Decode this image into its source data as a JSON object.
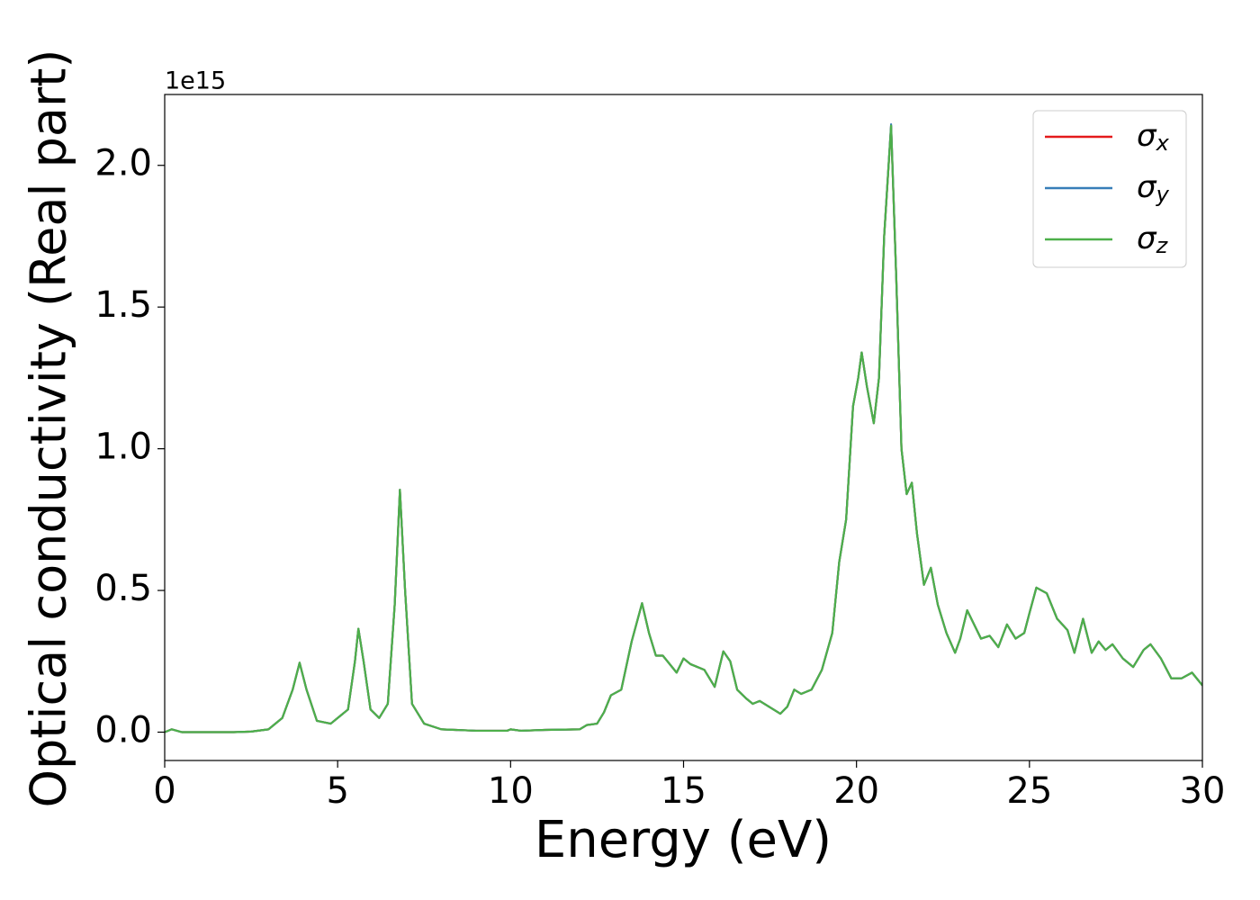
{
  "chart_data": {
    "type": "line",
    "xlabel": "Energy (eV)",
    "ylabel": "Optical conductivity (Real part)",
    "y_offset_text": "1e15",
    "xlim": [
      0,
      30
    ],
    "xticks": [
      0,
      5,
      10,
      15,
      20,
      25,
      30
    ],
    "ylim": [
      -0.1,
      2.25
    ],
    "yticks": [
      {
        "value": 0,
        "label": "0.0"
      },
      0.5,
      {
        "value": 1,
        "label": "1.0"
      },
      1.5,
      {
        "value": 2,
        "label": "2.0"
      }
    ],
    "grid": false,
    "legend": "upper right",
    "x": [
      0,
      0.2,
      0.5,
      1,
      2,
      2.5,
      3,
      3.4,
      3.7,
      3.9,
      4.1,
      4.4,
      4.8,
      5.1,
      5.3,
      5.5,
      5.6,
      5.75,
      5.95,
      6.2,
      6.45,
      6.65,
      6.8,
      6.95,
      7.15,
      7.5,
      8,
      9,
      9.9,
      10,
      10.3,
      11,
      12,
      12.2,
      12.5,
      12.7,
      12.9,
      13.2,
      13.5,
      13.8,
      14.0,
      14.2,
      14.4,
      14.8,
      15.0,
      15.2,
      15.6,
      15.9,
      16.15,
      16.35,
      16.55,
      16.8,
      17.0,
      17.2,
      17.8,
      18.0,
      18.2,
      18.4,
      18.7,
      19.0,
      19.3,
      19.5,
      19.7,
      19.9,
      20.05,
      20.15,
      20.3,
      20.5,
      20.65,
      20.8,
      21.0,
      21.15,
      21.3,
      21.45,
      21.6,
      21.75,
      21.95,
      22.15,
      22.35,
      22.6,
      22.85,
      23.0,
      23.2,
      23.4,
      23.6,
      23.85,
      24.1,
      24.35,
      24.6,
      24.85,
      25.0,
      25.2,
      25.5,
      25.8,
      26.1,
      26.3,
      26.55,
      26.8,
      27.0,
      27.2,
      27.4,
      27.7,
      28.0,
      28.3,
      28.5,
      28.8,
      29.1,
      29.4,
      29.7,
      30.0
    ],
    "series": [
      {
        "name": "σx",
        "color": "#e41a1c",
        "values": [
          0,
          0.01,
          0,
          0,
          0,
          0.002,
          0.01,
          0.05,
          0.15,
          0.245,
          0.15,
          0.04,
          0.03,
          0.06,
          0.08,
          0.25,
          0.365,
          0.25,
          0.08,
          0.05,
          0.1,
          0.45,
          0.855,
          0.5,
          0.1,
          0.03,
          0.01,
          0.005,
          0.005,
          0.01,
          0.005,
          0.008,
          0.01,
          0.025,
          0.03,
          0.07,
          0.13,
          0.15,
          0.32,
          0.455,
          0.35,
          0.27,
          0.27,
          0.21,
          0.26,
          0.24,
          0.22,
          0.16,
          0.285,
          0.25,
          0.15,
          0.12,
          0.1,
          0.11,
          0.065,
          0.09,
          0.15,
          0.135,
          0.15,
          0.22,
          0.35,
          0.6,
          0.75,
          1.15,
          1.25,
          1.34,
          1.22,
          1.09,
          1.25,
          1.75,
          2.14,
          1.6,
          1.0,
          0.84,
          0.88,
          0.7,
          0.52,
          0.58,
          0.45,
          0.35,
          0.28,
          0.33,
          0.43,
          0.38,
          0.33,
          0.34,
          0.3,
          0.38,
          0.33,
          0.35,
          0.42,
          0.51,
          0.49,
          0.4,
          0.36,
          0.28,
          0.4,
          0.28,
          0.32,
          0.29,
          0.31,
          0.26,
          0.23,
          0.29,
          0.31,
          0.26,
          0.19,
          0.19,
          0.21,
          0.165
        ]
      },
      {
        "name": "σy",
        "color": "#377eb8",
        "values": [
          0,
          0.01,
          0,
          0,
          0,
          0.002,
          0.01,
          0.05,
          0.15,
          0.245,
          0.15,
          0.04,
          0.03,
          0.06,
          0.08,
          0.25,
          0.365,
          0.25,
          0.08,
          0.05,
          0.1,
          0.45,
          0.855,
          0.5,
          0.1,
          0.03,
          0.01,
          0.005,
          0.005,
          0.01,
          0.005,
          0.008,
          0.01,
          0.025,
          0.03,
          0.07,
          0.13,
          0.15,
          0.32,
          0.455,
          0.35,
          0.27,
          0.27,
          0.21,
          0.26,
          0.24,
          0.22,
          0.16,
          0.285,
          0.25,
          0.15,
          0.12,
          0.1,
          0.11,
          0.065,
          0.09,
          0.15,
          0.135,
          0.15,
          0.22,
          0.35,
          0.6,
          0.75,
          1.15,
          1.25,
          1.34,
          1.22,
          1.09,
          1.25,
          1.75,
          2.145,
          1.6,
          1.0,
          0.84,
          0.88,
          0.7,
          0.52,
          0.58,
          0.45,
          0.35,
          0.28,
          0.33,
          0.43,
          0.38,
          0.33,
          0.34,
          0.3,
          0.38,
          0.33,
          0.35,
          0.42,
          0.51,
          0.49,
          0.4,
          0.36,
          0.28,
          0.4,
          0.28,
          0.32,
          0.29,
          0.31,
          0.26,
          0.23,
          0.29,
          0.31,
          0.26,
          0.19,
          0.19,
          0.21,
          0.165
        ]
      },
      {
        "name": "σz",
        "color": "#4daf4a",
        "values": [
          0,
          0.01,
          0,
          0,
          0,
          0.002,
          0.01,
          0.05,
          0.15,
          0.245,
          0.15,
          0.04,
          0.03,
          0.06,
          0.08,
          0.25,
          0.365,
          0.25,
          0.08,
          0.05,
          0.1,
          0.45,
          0.855,
          0.5,
          0.1,
          0.03,
          0.01,
          0.005,
          0.005,
          0.01,
          0.005,
          0.008,
          0.01,
          0.025,
          0.03,
          0.07,
          0.13,
          0.15,
          0.32,
          0.455,
          0.35,
          0.27,
          0.27,
          0.21,
          0.26,
          0.24,
          0.22,
          0.16,
          0.285,
          0.25,
          0.15,
          0.12,
          0.1,
          0.11,
          0.065,
          0.09,
          0.15,
          0.135,
          0.15,
          0.22,
          0.35,
          0.6,
          0.75,
          1.15,
          1.25,
          1.34,
          1.22,
          1.09,
          1.25,
          1.75,
          2.14,
          1.6,
          1.0,
          0.84,
          0.88,
          0.7,
          0.52,
          0.58,
          0.45,
          0.35,
          0.28,
          0.33,
          0.43,
          0.38,
          0.33,
          0.34,
          0.3,
          0.38,
          0.33,
          0.35,
          0.42,
          0.51,
          0.49,
          0.4,
          0.36,
          0.28,
          0.4,
          0.28,
          0.32,
          0.29,
          0.31,
          0.26,
          0.23,
          0.29,
          0.31,
          0.26,
          0.19,
          0.19,
          0.21,
          0.165
        ]
      }
    ]
  }
}
